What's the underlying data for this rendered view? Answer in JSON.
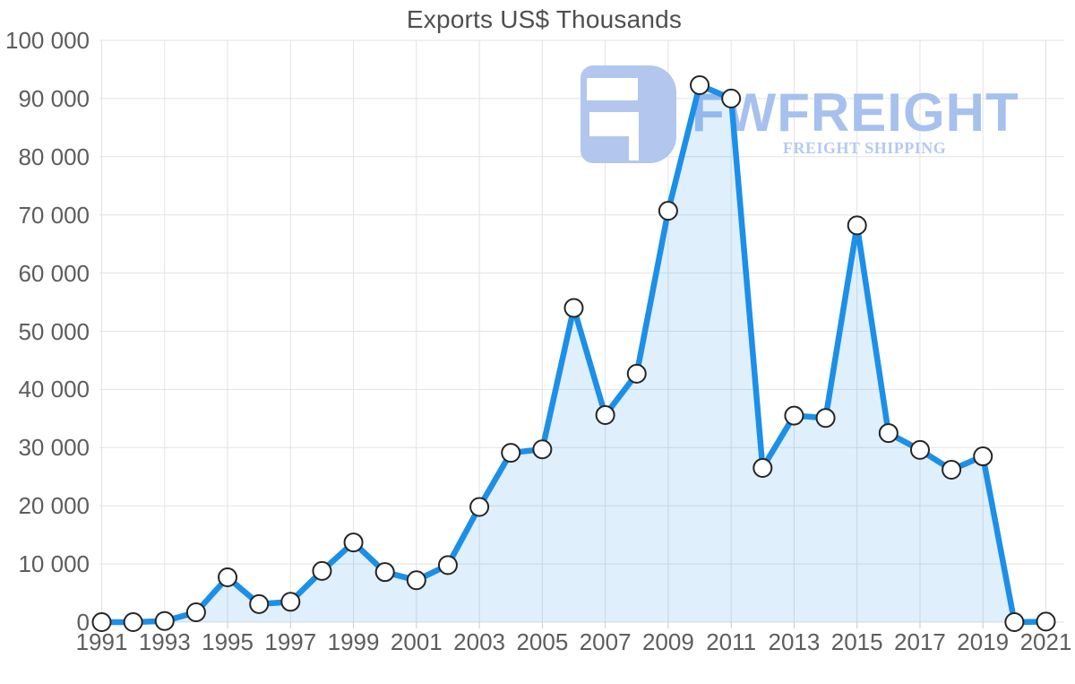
{
  "title": "Exports US$ Thousands",
  "watermark": {
    "brand": "FWFREIGHT",
    "tagline": "FREIGHT SHIPPING",
    "icon": "fwfreight-logo-icon",
    "icon_color": "#b2c6ee",
    "brand_color": "#a6c1ee",
    "tagline_color": "#b4c9f1"
  },
  "chart_data": {
    "type": "area",
    "title": "Exports US$ Thousands",
    "xlabel": "",
    "ylabel": "",
    "x": [
      1991,
      1992,
      1993,
      1994,
      1995,
      1996,
      1997,
      1998,
      1999,
      2000,
      2001,
      2002,
      2003,
      2004,
      2005,
      2006,
      2007,
      2008,
      2009,
      2010,
      2011,
      2012,
      2013,
      2014,
      2015,
      2016,
      2017,
      2018,
      2019,
      2020,
      2021
    ],
    "series": [
      {
        "name": "Exports US$ Thousands",
        "values": [
          0,
          0,
          200,
          1700,
          7700,
          3100,
          3500,
          8800,
          13700,
          8600,
          7200,
          9800,
          19800,
          29100,
          29700,
          54000,
          35600,
          42700,
          70700,
          92300,
          90000,
          26500,
          35500,
          35100,
          68200,
          32500,
          29600,
          26200,
          28500,
          0,
          100
        ]
      }
    ],
    "ylim": [
      0,
      100000
    ],
    "ytick_interval": 10000,
    "ytick_labels": [
      "0",
      "10 000",
      "20 000",
      "30 000",
      "40 000",
      "50 000",
      "60 000",
      "70 000",
      "80 000",
      "90 000",
      "100 000"
    ],
    "xtick_labels": [
      "1991",
      "1993",
      "1995",
      "1997",
      "1999",
      "2001",
      "2003",
      "2005",
      "2007",
      "2009",
      "2011",
      "2013",
      "2015",
      "2017",
      "2019",
      "2021"
    ],
    "grid": true,
    "legend_position": "none",
    "line_color": "#1c8fe8",
    "fill_color": "rgba(28,143,232,0.14)",
    "marker_fill": "#ffffff",
    "marker_stroke": "#252525",
    "grid_color": "#e2e2e2",
    "tick_mark_color": "#c9c9c9",
    "tick_label_color": "#5d5d5d",
    "title_color": "#4f4f4f"
  }
}
